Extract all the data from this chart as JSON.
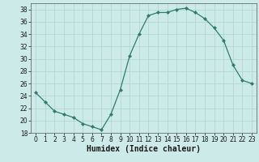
{
  "x": [
    0,
    1,
    2,
    3,
    4,
    5,
    6,
    7,
    8,
    9,
    10,
    11,
    12,
    13,
    14,
    15,
    16,
    17,
    18,
    19,
    20,
    21,
    22,
    23
  ],
  "y": [
    24.5,
    23,
    21.5,
    21,
    20.5,
    19.5,
    19,
    18.5,
    21,
    25,
    30.5,
    34,
    37,
    37.5,
    37.5,
    38,
    38.2,
    37.5,
    36.5,
    35,
    33,
    29,
    26.5,
    26
  ],
  "line_color": "#2e7d6e",
  "marker": "D",
  "marker_size": 2,
  "bg_color": "#cceae7",
  "grid_color": "#b0d4d0",
  "xlabel": "Humidex (Indice chaleur)",
  "xlim": [
    -0.5,
    23.5
  ],
  "ylim": [
    18,
    39
  ],
  "yticks": [
    18,
    20,
    22,
    24,
    26,
    28,
    30,
    32,
    34,
    36,
    38
  ],
  "xticks": [
    0,
    1,
    2,
    3,
    4,
    5,
    6,
    7,
    8,
    9,
    10,
    11,
    12,
    13,
    14,
    15,
    16,
    17,
    18,
    19,
    20,
    21,
    22,
    23
  ],
  "tick_fontsize": 5.5,
  "xlabel_fontsize": 7.0
}
